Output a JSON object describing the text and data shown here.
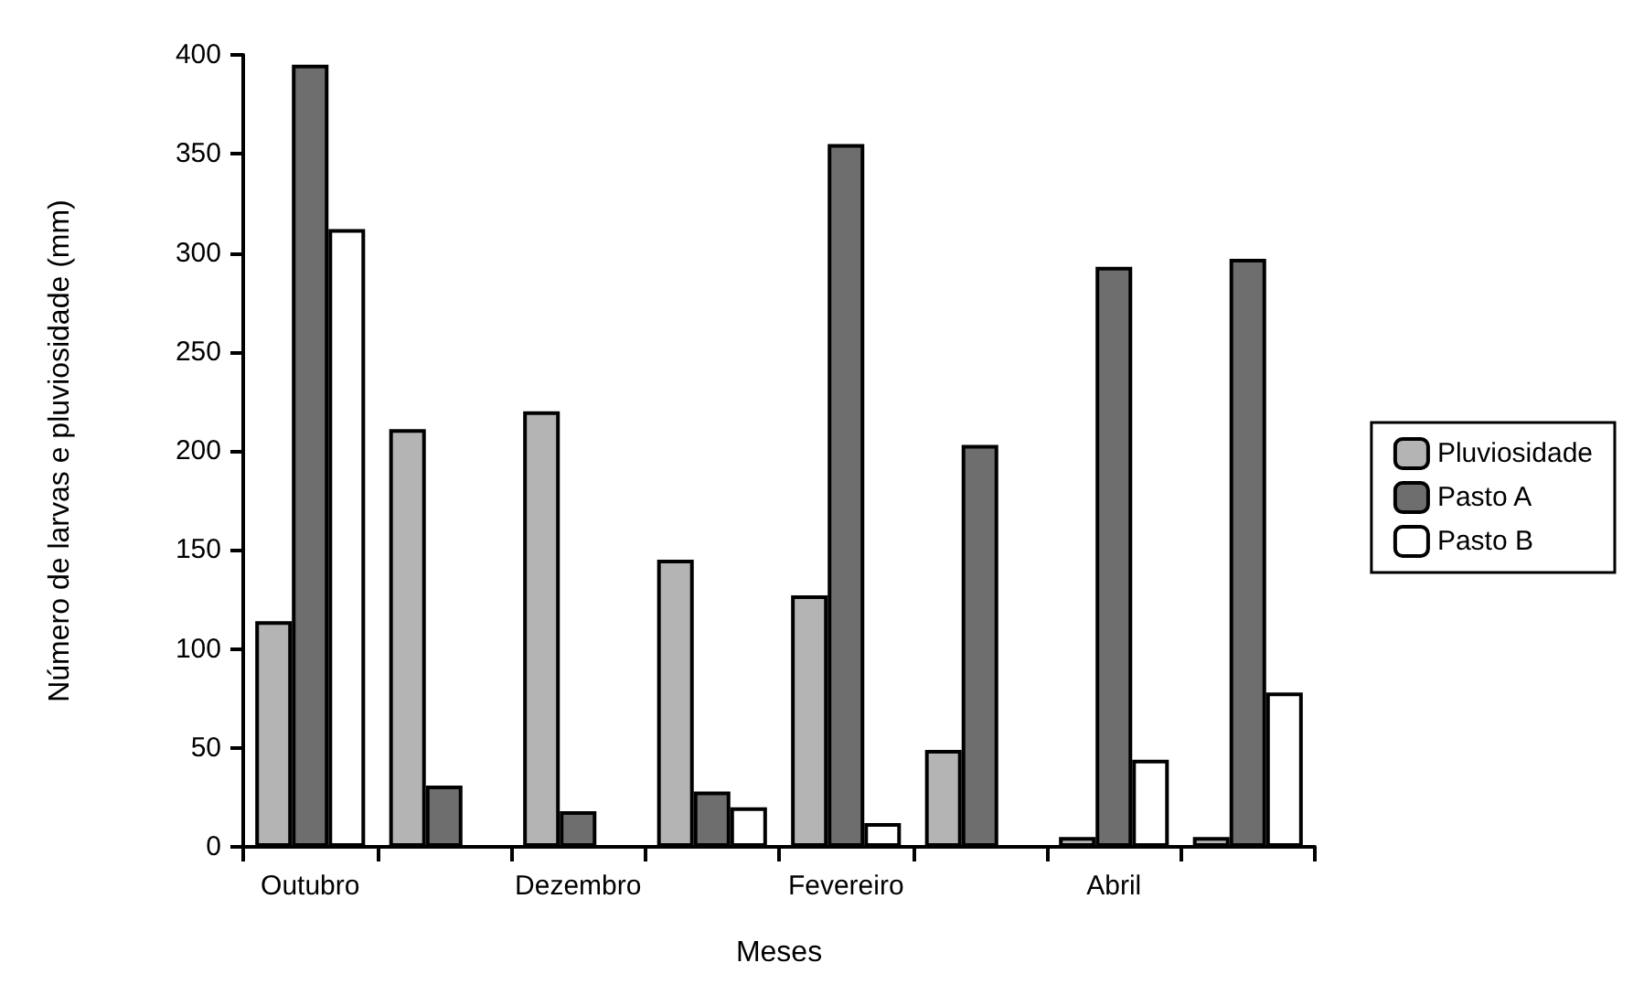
{
  "chart_data": {
    "type": "bar",
    "xlabel": "Meses",
    "ylabel": "Número de larvas e pluviosidade (mm)",
    "categories": [
      "Outubro",
      null,
      "Dezembro",
      null,
      "Fevereiro",
      null,
      "Abril",
      null
    ],
    "series": [
      {
        "name": "Pluviosidade",
        "color": "#b4b4b4",
        "values": [
          114,
          211,
          220,
          145,
          127,
          49,
          5,
          5
        ]
      },
      {
        "name": "Pasto A",
        "color": "#6e6e6e",
        "values": [
          395,
          31,
          18,
          28,
          355,
          203,
          293,
          297
        ]
      },
      {
        "name": "Pasto B",
        "color": "#ffffff",
        "values": [
          312,
          null,
          null,
          20,
          12,
          null,
          44,
          78
        ]
      }
    ],
    "ylim": [
      0,
      400
    ],
    "yticks": [
      0,
      50,
      100,
      150,
      200,
      250,
      300,
      350,
      400
    ],
    "grid": false,
    "legend": "right"
  }
}
